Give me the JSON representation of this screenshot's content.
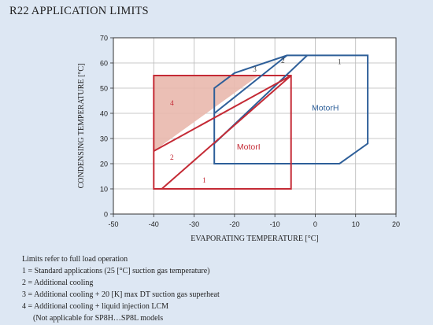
{
  "title": "R22 APPLICATION LIMITS",
  "chart_data": {
    "type": "line",
    "xlabel": "EVAPORATING TEMPERATURE  [°C]",
    "ylabel": "CONDENSING TEMPERATURE  [°C]",
    "xlim": [
      -50,
      20
    ],
    "ylim": [
      0,
      70
    ],
    "xticks": [
      "-50",
      "-40",
      "-30",
      "-20",
      "-10",
      "0",
      "10",
      "20"
    ],
    "yticks": [
      "0",
      "10",
      "20",
      "30",
      "40",
      "50",
      "60",
      "70"
    ],
    "grid": true,
    "colors": {
      "motor_h": "#2e5f99",
      "motor_l": "#c42a35",
      "fill4": "#e9b8ad"
    },
    "envelopes": [
      {
        "name": "MotorH",
        "points": [
          [
            -25,
            20
          ],
          [
            6,
            20
          ],
          [
            13,
            28
          ],
          [
            13,
            63
          ],
          [
            -7,
            63
          ],
          [
            -20,
            56
          ],
          [
            -25,
            50
          ]
        ]
      },
      {
        "name": "MotorL",
        "points": [
          [
            -40,
            10
          ],
          [
            -6,
            10
          ],
          [
            -6,
            55
          ],
          [
            -40,
            55
          ]
        ]
      }
    ],
    "limit_lines": [
      {
        "id": "1",
        "color": "#2e5f99",
        "points": [
          [
            -25,
            28
          ],
          [
            -2,
            63
          ]
        ]
      },
      {
        "id": "2",
        "color": "#2e5f99",
        "points": [
          [
            -25,
            40
          ],
          [
            -7,
            63
          ]
        ]
      },
      {
        "id": "3",
        "color": "#c42a35",
        "points": [
          [
            -40,
            25
          ],
          [
            -6,
            55
          ]
        ]
      },
      {
        "id": "4",
        "color": "#c42a35",
        "points": [
          [
            -38,
            10
          ],
          [
            -6,
            55
          ]
        ]
      }
    ],
    "shaded_region": [
      [
        -40,
        25
      ],
      [
        -40,
        55
      ],
      [
        -14,
        55
      ]
    ],
    "annotations": [
      {
        "text": "1",
        "x": 6,
        "y": 60.5,
        "color": "#444444"
      },
      {
        "text": "2",
        "x": -8,
        "y": 61,
        "color": "#444444"
      },
      {
        "text": "3",
        "x": -15,
        "y": 57.5,
        "color": "#444444"
      },
      {
        "text": "4",
        "x": -35.5,
        "y": 44,
        "color": "#c42a35"
      },
      {
        "text": "2",
        "x": -35.5,
        "y": 22.5,
        "color": "#c42a35"
      },
      {
        "text": "1",
        "x": -27.5,
        "y": 13.5,
        "color": "#c42a35"
      },
      {
        "text": "MotorH",
        "x": 2.5,
        "y": 42,
        "color": "#2e5f99"
      },
      {
        "text": "MotorI",
        "x": -16.5,
        "y": 26.5,
        "color": "#c42a35"
      }
    ]
  },
  "legend": [
    "Limits refer to full load operation",
    "1 = Standard applications (25 [°C] suction gas temperature)",
    "2 = Additional cooling",
    "3 = Additional cooling + 20 [K] max DT suction gas superheat",
    "4 = Additional cooling + liquid injection LCM",
    "(Not applicable for SP8H…SP8L models"
  ]
}
